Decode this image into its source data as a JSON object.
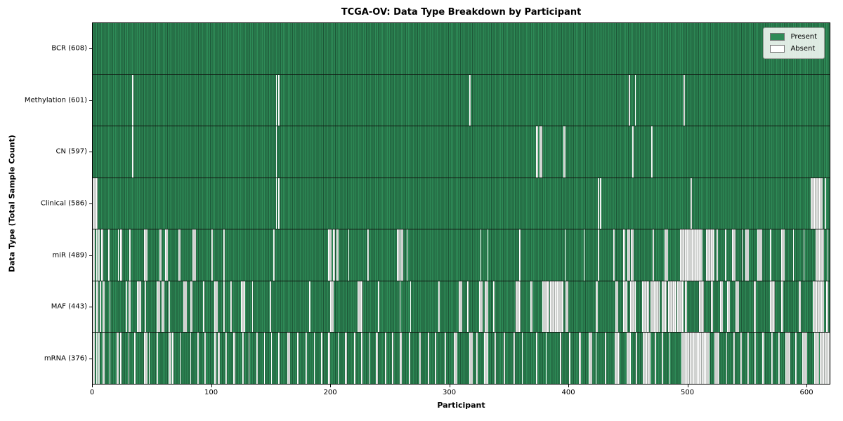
{
  "chart_data": {
    "type": "heatmap",
    "title": "TCGA-OV: Data Type Breakdown by Participant",
    "xlabel": "Participant",
    "ylabel": "Data Type (Total Sample Count)",
    "x_ticks": [
      0,
      100,
      200,
      300,
      400,
      500,
      600
    ],
    "x_max": 620,
    "grid": false,
    "legend_position": "upper right",
    "legend": [
      {
        "label": "Present",
        "color": "#2e8b57"
      },
      {
        "label": "Absent",
        "color": "#ffffff"
      }
    ],
    "colors": {
      "present_fill": "#2e8b57",
      "present_edge": "#1d5737",
      "absent_fill": "#ffffff",
      "absent_edge": "#a0a5a1",
      "separator": "#101510",
      "spine": "#000000"
    },
    "rows": [
      {
        "label": "BCR (608)",
        "count": 608,
        "absent": []
      },
      {
        "label": "Methylation (601)",
        "count": 601,
        "absent": [
          [
            33,
            34
          ],
          [
            154,
            155
          ],
          [
            156,
            157
          ],
          [
            317,
            318
          ],
          [
            451,
            452
          ],
          [
            456,
            457
          ],
          [
            497,
            498
          ]
        ]
      },
      {
        "label": "CN (597)",
        "count": 597,
        "absent": [
          [
            33,
            34
          ],
          [
            154,
            155
          ],
          [
            373,
            375
          ],
          [
            376,
            378
          ],
          [
            396,
            398
          ],
          [
            454,
            455
          ],
          [
            470,
            471
          ]
        ]
      },
      {
        "label": "Clinical (586)",
        "count": 586,
        "absent": [
          [
            0,
            4
          ],
          [
            154,
            155
          ],
          [
            156,
            157
          ],
          [
            425,
            426
          ],
          [
            427,
            428
          ],
          [
            503,
            504
          ],
          [
            604,
            614
          ],
          [
            616,
            617
          ]
        ]
      },
      {
        "label": "miR (489)",
        "count": 489,
        "absent": [
          [
            0,
            2
          ],
          [
            3,
            4
          ],
          [
            5,
            6
          ],
          [
            7,
            9
          ],
          [
            13,
            14
          ],
          [
            21,
            22
          ],
          [
            23,
            25
          ],
          [
            31,
            32
          ],
          [
            43,
            46
          ],
          [
            56,
            58
          ],
          [
            61,
            63
          ],
          [
            72,
            74
          ],
          [
            84,
            87
          ],
          [
            100,
            101
          ],
          [
            110,
            111
          ],
          [
            152,
            153
          ],
          [
            198,
            201
          ],
          [
            202,
            204
          ],
          [
            205,
            207
          ],
          [
            215,
            216
          ],
          [
            231,
            232
          ],
          [
            256,
            258
          ],
          [
            259,
            261
          ],
          [
            264,
            265
          ],
          [
            326,
            327
          ],
          [
            332,
            333
          ],
          [
            359,
            360
          ],
          [
            397,
            398
          ],
          [
            413,
            414
          ],
          [
            425,
            426
          ],
          [
            438,
            439
          ],
          [
            446,
            448
          ],
          [
            450,
            452
          ],
          [
            453,
            455
          ],
          [
            471,
            472
          ],
          [
            481,
            484
          ],
          [
            494,
            513
          ],
          [
            516,
            523
          ],
          [
            525,
            526
          ],
          [
            532,
            533
          ],
          [
            538,
            541
          ],
          [
            546,
            547
          ],
          [
            549,
            552
          ],
          [
            559,
            563
          ],
          [
            570,
            571
          ],
          [
            579,
            582
          ],
          [
            589,
            590
          ],
          [
            598,
            599
          ],
          [
            608,
            615
          ],
          [
            618,
            619
          ]
        ]
      },
      {
        "label": "MAF (443)",
        "count": 443,
        "absent": [
          [
            0,
            2
          ],
          [
            3,
            5
          ],
          [
            6,
            7
          ],
          [
            8,
            10
          ],
          [
            14,
            15
          ],
          [
            28,
            29
          ],
          [
            30,
            32
          ],
          [
            37,
            41
          ],
          [
            44,
            45
          ],
          [
            54,
            57
          ],
          [
            58,
            60
          ],
          [
            64,
            65
          ],
          [
            76,
            79
          ],
          [
            82,
            84
          ],
          [
            93,
            94
          ],
          [
            102,
            105
          ],
          [
            110,
            111
          ],
          [
            116,
            117
          ],
          [
            125,
            128
          ],
          [
            134,
            135
          ],
          [
            149,
            150
          ],
          [
            182,
            183
          ],
          [
            200,
            203
          ],
          [
            223,
            227
          ],
          [
            240,
            241
          ],
          [
            258,
            259
          ],
          [
            267,
            268
          ],
          [
            291,
            292
          ],
          [
            308,
            311
          ],
          [
            315,
            316
          ],
          [
            325,
            328
          ],
          [
            330,
            333
          ],
          [
            337,
            338
          ],
          [
            356,
            360
          ],
          [
            368,
            370
          ],
          [
            378,
            384
          ],
          [
            385,
            396
          ],
          [
            398,
            400
          ],
          [
            423,
            425
          ],
          [
            440,
            442
          ],
          [
            446,
            450
          ],
          [
            452,
            457
          ],
          [
            462,
            468
          ],
          [
            469,
            477
          ],
          [
            479,
            483
          ],
          [
            484,
            491
          ],
          [
            492,
            497
          ],
          [
            498,
            500
          ],
          [
            510,
            514
          ],
          [
            520,
            522
          ],
          [
            528,
            530
          ],
          [
            534,
            536
          ],
          [
            541,
            544
          ],
          [
            556,
            558
          ],
          [
            570,
            574
          ],
          [
            579,
            581
          ],
          [
            594,
            596
          ],
          [
            606,
            615
          ],
          [
            617,
            619
          ]
        ]
      },
      {
        "label": "mRNA (376)",
        "count": 376,
        "absent": [
          [
            0,
            2
          ],
          [
            3,
            4
          ],
          [
            5,
            6
          ],
          [
            8,
            10
          ],
          [
            14,
            15
          ],
          [
            20,
            22
          ],
          [
            23,
            24
          ],
          [
            30,
            31
          ],
          [
            35,
            36
          ],
          [
            43,
            46
          ],
          [
            47,
            48
          ],
          [
            54,
            55
          ],
          [
            64,
            66
          ],
          [
            67,
            68
          ],
          [
            73,
            74
          ],
          [
            82,
            83
          ],
          [
            88,
            89
          ],
          [
            94,
            95
          ],
          [
            102,
            104
          ],
          [
            105,
            107
          ],
          [
            112,
            113
          ],
          [
            118,
            120
          ],
          [
            126,
            127
          ],
          [
            131,
            132
          ],
          [
            138,
            139
          ],
          [
            144,
            145
          ],
          [
            150,
            151
          ],
          [
            156,
            157
          ],
          [
            164,
            166
          ],
          [
            172,
            173
          ],
          [
            179,
            180
          ],
          [
            186,
            187
          ],
          [
            192,
            193
          ],
          [
            198,
            200
          ],
          [
            206,
            207
          ],
          [
            212,
            214
          ],
          [
            220,
            221
          ],
          [
            226,
            227
          ],
          [
            232,
            233
          ],
          [
            238,
            240
          ],
          [
            246,
            247
          ],
          [
            252,
            253
          ],
          [
            258,
            260
          ],
          [
            266,
            267
          ],
          [
            275,
            276
          ],
          [
            282,
            283
          ],
          [
            288,
            289
          ],
          [
            296,
            297
          ],
          [
            304,
            307
          ],
          [
            317,
            320
          ],
          [
            323,
            324
          ],
          [
            329,
            333
          ],
          [
            338,
            339
          ],
          [
            346,
            347
          ],
          [
            354,
            355
          ],
          [
            361,
            362
          ],
          [
            373,
            374
          ],
          [
            381,
            382
          ],
          [
            393,
            394
          ],
          [
            401,
            402
          ],
          [
            409,
            411
          ],
          [
            417,
            420
          ],
          [
            423,
            424
          ],
          [
            431,
            432
          ],
          [
            439,
            443
          ],
          [
            449,
            453
          ],
          [
            457,
            458
          ],
          [
            463,
            469
          ],
          [
            473,
            474
          ],
          [
            479,
            480
          ],
          [
            485,
            486
          ],
          [
            495,
            519
          ],
          [
            523,
            527
          ],
          [
            533,
            534
          ],
          [
            539,
            540
          ],
          [
            545,
            546
          ],
          [
            551,
            552
          ],
          [
            557,
            558
          ],
          [
            563,
            565
          ],
          [
            571,
            572
          ],
          [
            577,
            578
          ],
          [
            583,
            587
          ],
          [
            591,
            592
          ],
          [
            597,
            601
          ],
          [
            607,
            611
          ],
          [
            612,
            620
          ]
        ]
      }
    ]
  }
}
